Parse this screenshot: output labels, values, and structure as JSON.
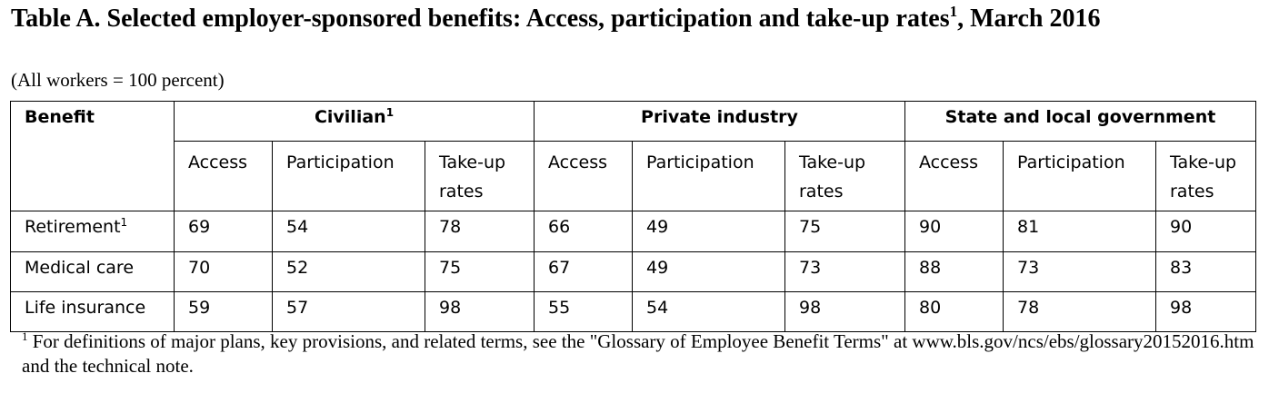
{
  "title": {
    "text": "Table A. Selected employer-sponsored benefits: Access, participation and take-up rates",
    "sup": "1",
    "text_after": ", March 2016"
  },
  "subtitle": "(All workers = 100 percent)",
  "table": {
    "row_header_label": "Benefit",
    "groups": [
      {
        "label": "Civilian",
        "sup": "1"
      },
      {
        "label": "Private industry",
        "sup": ""
      },
      {
        "label": "State and local government",
        "sup": ""
      }
    ],
    "subheaders": [
      "Access",
      "Participation",
      "Take-up\nrates"
    ],
    "rows": [
      {
        "label": "Retirement",
        "sup": "1",
        "values": [
          "69",
          "54",
          "78",
          "66",
          "49",
          "75",
          "90",
          "81",
          "90"
        ]
      },
      {
        "label": "Medical care",
        "sup": "",
        "values": [
          "70",
          "52",
          "75",
          "67",
          "49",
          "73",
          "88",
          "73",
          "83"
        ]
      },
      {
        "label": "Life insurance",
        "sup": "",
        "values": [
          "59",
          "57",
          "98",
          "55",
          "54",
          "98",
          "80",
          "78",
          "98"
        ]
      }
    ]
  },
  "footnote": {
    "sup": "1",
    "text": " For definitions of major plans, key provisions, and related terms, see the \"Glossary of Employee Benefit Terms\" at www.bls.gov/ncs/ebs/glossary20152016.htm and the technical note."
  }
}
